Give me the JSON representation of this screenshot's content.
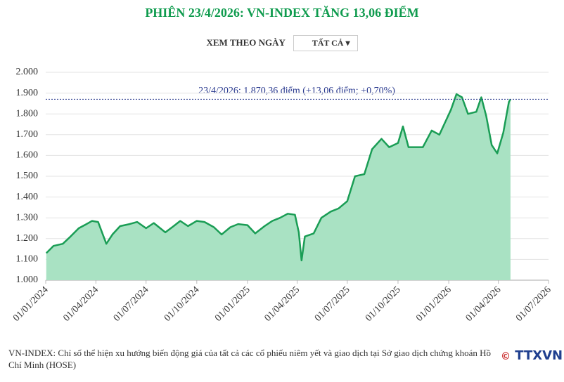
{
  "header": {
    "filter_label": "XEM THEO NGÀY",
    "filter_value": "TẤT CẢ"
  },
  "chart_data": {
    "type": "area",
    "title": "PHIÊN 23/4/2026: VN-INDEX TĂNG 13,06 ĐIỂM",
    "annotation": "23/4/2026: 1.870,36 điểm (+13,06 điểm; +0,70%)",
    "reference_line": 1870.36,
    "x": [
      "2024-01-02",
      "2024-01-15",
      "2024-02-01",
      "2024-02-15",
      "2024-03-01",
      "2024-03-15",
      "2024-03-25",
      "2024-04-05",
      "2024-04-15",
      "2024-04-20",
      "2024-05-01",
      "2024-05-15",
      "2024-06-01",
      "2024-06-15",
      "2024-07-01",
      "2024-07-15",
      "2024-08-05",
      "2024-08-20",
      "2024-09-01",
      "2024-09-15",
      "2024-10-01",
      "2024-10-15",
      "2024-11-01",
      "2024-11-15",
      "2024-12-01",
      "2024-12-15",
      "2025-01-01",
      "2025-01-15",
      "2025-02-01",
      "2025-02-15",
      "2025-03-01",
      "2025-03-15",
      "2025-03-28",
      "2025-04-04",
      "2025-04-09",
      "2025-04-15",
      "2025-05-01",
      "2025-05-15",
      "2025-06-01",
      "2025-06-15",
      "2025-07-01",
      "2025-07-15",
      "2025-08-01",
      "2025-08-15",
      "2025-09-01",
      "2025-09-15",
      "2025-10-01",
      "2025-10-10",
      "2025-10-20",
      "2025-11-01",
      "2025-11-15",
      "2025-12-01",
      "2025-12-15",
      "2026-01-05",
      "2026-01-15",
      "2026-01-25",
      "2026-02-05",
      "2026-02-20",
      "2026-03-01",
      "2026-03-10",
      "2026-03-20",
      "2026-03-30",
      "2026-04-10",
      "2026-04-20",
      "2026-04-23"
    ],
    "series": [
      {
        "name": "VN-INDEX",
        "color": "#1a9d55",
        "fill": "#a9e2c3",
        "values": [
          1130,
          1165,
          1175,
          1210,
          1250,
          1270,
          1285,
          1280,
          1210,
          1175,
          1220,
          1260,
          1270,
          1280,
          1250,
          1275,
          1230,
          1260,
          1285,
          1260,
          1285,
          1280,
          1255,
          1220,
          1255,
          1270,
          1265,
          1225,
          1260,
          1285,
          1300,
          1320,
          1315,
          1230,
          1095,
          1210,
          1225,
          1300,
          1330,
          1345,
          1380,
          1500,
          1510,
          1630,
          1680,
          1640,
          1660,
          1740,
          1640,
          1640,
          1640,
          1720,
          1700,
          1820,
          1895,
          1880,
          1800,
          1810,
          1880,
          1790,
          1650,
          1610,
          1710,
          1857,
          1870.36
        ]
      }
    ],
    "xlim": [
      "2024-01-01",
      "2026-07-01"
    ],
    "xticks": [
      {
        "value": "2024-01-01",
        "label": "01/01/2024"
      },
      {
        "value": "2024-04-01",
        "label": "01/04/2024"
      },
      {
        "value": "2024-07-01",
        "label": "01/07/2024"
      },
      {
        "value": "2024-10-01",
        "label": "01/10/2024"
      },
      {
        "value": "2025-01-01",
        "label": "01/01/2025"
      },
      {
        "value": "2025-04-01",
        "label": "01/04/2025"
      },
      {
        "value": "2025-07-01",
        "label": "01/07/2025"
      },
      {
        "value": "2025-10-01",
        "label": "01/10/2025"
      },
      {
        "value": "2026-01-01",
        "label": "01/01/2026"
      },
      {
        "value": "2026-04-01",
        "label": "01/04/2026"
      },
      {
        "value": "2026-07-01",
        "label": "01/07/2026"
      }
    ],
    "ylim": [
      1000,
      2000
    ],
    "yticks": [
      {
        "value": 1000,
        "label": "1.000"
      },
      {
        "value": 1100,
        "label": "1.100"
      },
      {
        "value": 1200,
        "label": "1.200"
      },
      {
        "value": 1300,
        "label": "1.300"
      },
      {
        "value": 1400,
        "label": "1.400"
      },
      {
        "value": 1500,
        "label": "1.500"
      },
      {
        "value": 1600,
        "label": "1.600"
      },
      {
        "value": 1700,
        "label": "1.700"
      },
      {
        "value": 1800,
        "label": "1.800"
      },
      {
        "value": 1900,
        "label": "1.900"
      },
      {
        "value": 2000,
        "label": "2.000"
      }
    ],
    "grid": true
  },
  "footer": {
    "caption": "VN-INDEX: Chỉ số thể hiện xu hướng biến động giá của tất cả các cổ phiếu niêm yết và giao dịch tại Sở giao dịch chứng khoán Hồ Chí Minh (HOSE)",
    "copyright": "©",
    "source": "TTXVN"
  }
}
